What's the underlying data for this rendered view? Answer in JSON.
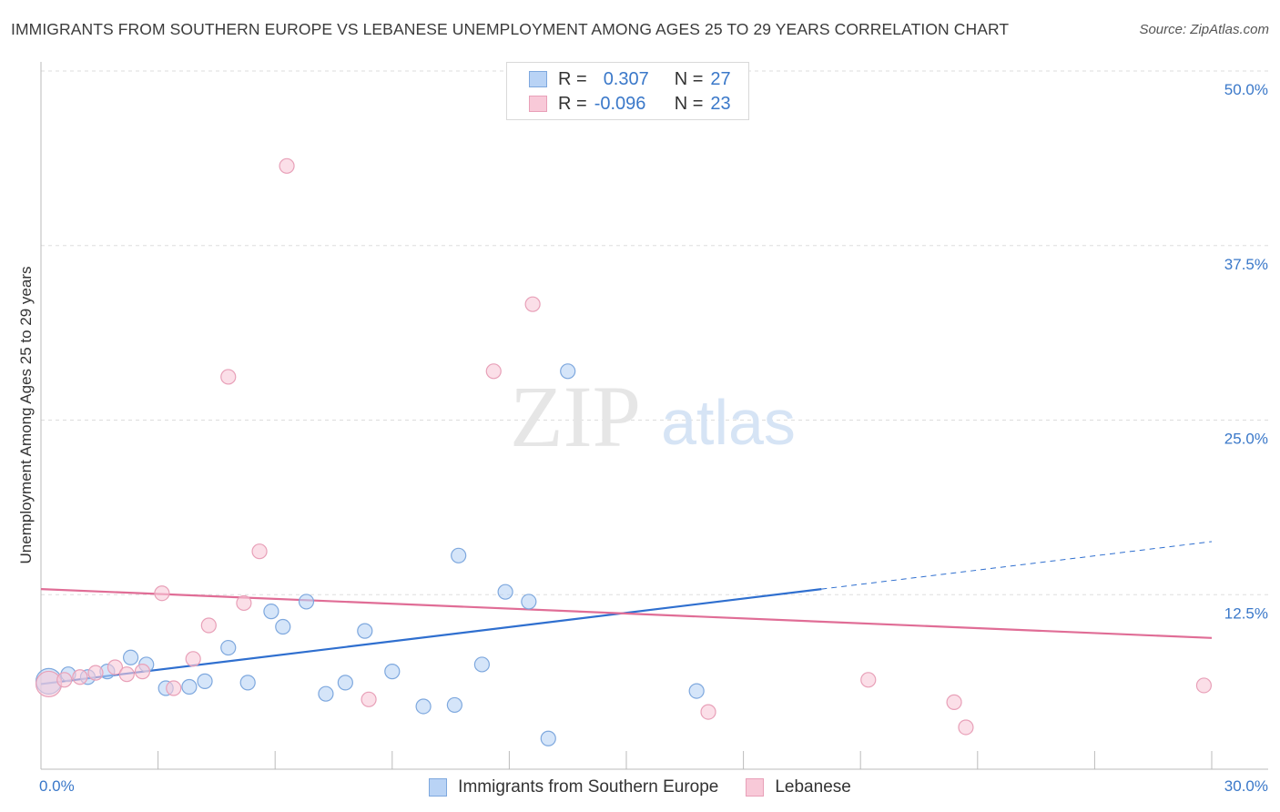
{
  "title": "IMMIGRANTS FROM SOUTHERN EUROPE VS LEBANESE UNEMPLOYMENT AMONG AGES 25 TO 29 YEARS CORRELATION CHART",
  "source": "Source: ZipAtlas.com",
  "watermark": {
    "zip": "ZIP",
    "atlas": "atlas"
  },
  "legend": {
    "series1": {
      "r_label": "R =",
      "r_value": "0.307",
      "n_label": "N =",
      "n_value": "27"
    },
    "series2": {
      "r_label": "R =",
      "r_value": "-0.096",
      "n_label": "N =",
      "n_value": "23"
    }
  },
  "colors": {
    "blue_fill": "#b9d3f5",
    "blue_stroke": "#7ea8de",
    "blue_line": "#2f6fcf",
    "pink_fill": "#f8c9d8",
    "pink_stroke": "#e8a0b8",
    "pink_line": "#e06d96",
    "tick_text": "#3a78c9"
  },
  "chart_data": {
    "type": "scatter",
    "title": "IMMIGRANTS FROM SOUTHERN EUROPE VS LEBANESE UNEMPLOYMENT AMONG AGES 25 TO 29 YEARS CORRELATION CHART",
    "xlabel": "",
    "ylabel": "Unemployment Among Ages 25 to 29 years",
    "xlim": [
      0,
      30
    ],
    "ylim": [
      0,
      50
    ],
    "x_tick_labels": [
      "0.0%",
      "30.0%"
    ],
    "y_ticks": [
      12.5,
      25.0,
      37.5,
      50.0
    ],
    "y_tick_labels": [
      "12.5%",
      "25.0%",
      "37.5%",
      "50.0%"
    ],
    "series": [
      {
        "name": "Immigrants from Southern Europe",
        "color": "blue",
        "points": [
          [
            0.2,
            6.3
          ],
          [
            0.7,
            6.8
          ],
          [
            1.2,
            6.6
          ],
          [
            1.7,
            7.0
          ],
          [
            2.3,
            8.0
          ],
          [
            2.7,
            7.5
          ],
          [
            3.2,
            5.8
          ],
          [
            3.8,
            5.9
          ],
          [
            4.2,
            6.3
          ],
          [
            4.8,
            8.7
          ],
          [
            5.3,
            6.2
          ],
          [
            5.9,
            11.3
          ],
          [
            6.2,
            10.2
          ],
          [
            6.8,
            12.0
          ],
          [
            7.3,
            5.4
          ],
          [
            7.8,
            6.2
          ],
          [
            8.3,
            9.9
          ],
          [
            9.0,
            7.0
          ],
          [
            9.8,
            4.5
          ],
          [
            10.6,
            4.6
          ],
          [
            10.7,
            15.3
          ],
          [
            11.3,
            7.5
          ],
          [
            11.9,
            12.7
          ],
          [
            12.5,
            12.0
          ],
          [
            13.0,
            2.2
          ],
          [
            13.5,
            28.5
          ],
          [
            16.8,
            5.6
          ]
        ],
        "trend": {
          "x0": 0,
          "y0": 6.1,
          "x1": 20,
          "y1": 12.9,
          "dash_x1": 30,
          "dash_y1": 16.3
        }
      },
      {
        "name": "Lebanese",
        "color": "pink",
        "points": [
          [
            0.2,
            6.1
          ],
          [
            0.6,
            6.4
          ],
          [
            1.0,
            6.6
          ],
          [
            1.4,
            6.9
          ],
          [
            1.9,
            7.3
          ],
          [
            2.2,
            6.8
          ],
          [
            2.6,
            7.0
          ],
          [
            3.1,
            12.6
          ],
          [
            3.4,
            5.8
          ],
          [
            3.9,
            7.9
          ],
          [
            4.3,
            10.3
          ],
          [
            4.8,
            28.1
          ],
          [
            5.2,
            11.9
          ],
          [
            5.6,
            15.6
          ],
          [
            6.3,
            43.2
          ],
          [
            8.4,
            5.0
          ],
          [
            11.6,
            28.5
          ],
          [
            12.6,
            33.3
          ],
          [
            17.1,
            4.1
          ],
          [
            21.2,
            6.4
          ],
          [
            23.4,
            4.8
          ],
          [
            23.7,
            3.0
          ],
          [
            29.8,
            6.0
          ]
        ],
        "trend": {
          "x0": 0,
          "y0": 12.9,
          "x1": 30,
          "y1": 9.4
        }
      }
    ]
  },
  "bottom_legend": {
    "series1_label": "Immigrants from Southern Europe",
    "series2_label": "Lebanese"
  }
}
